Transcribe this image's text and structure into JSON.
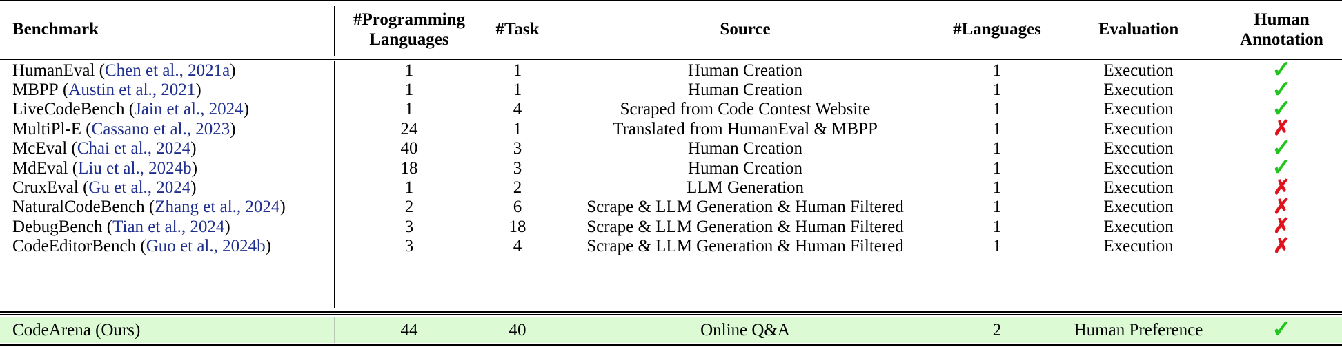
{
  "table": {
    "headers": {
      "benchmark": "Benchmark",
      "programming_languages": [
        "#Programming",
        "Languages"
      ],
      "task": "#Task",
      "source": "Source",
      "languages": "#Languages",
      "evaluation": "Evaluation",
      "human_annotation": [
        "Human",
        "Annotation"
      ]
    },
    "marks": {
      "yes": "✓",
      "no": "✗"
    },
    "rows": [
      {
        "name": "HumanEval",
        "open": " (",
        "cite": "Chen et al., 2021a",
        "close": ")",
        "pl": "1",
        "task": "1",
        "source": "Human Creation",
        "languages": "1",
        "evaluation": "Execution",
        "annotation": "yes"
      },
      {
        "name": "MBPP",
        "open": " (",
        "cite": "Austin et al., 2021",
        "close": ")",
        "pl": "1",
        "task": "1",
        "source": "Human Creation",
        "languages": "1",
        "evaluation": "Execution",
        "annotation": "yes"
      },
      {
        "name": "LiveCodeBench",
        "open": " (",
        "cite": "Jain et al., 2024",
        "close": ")",
        "pl": "1",
        "task": "4",
        "source": "Scraped from Code Contest Website",
        "languages": "1",
        "evaluation": "Execution",
        "annotation": "yes"
      },
      {
        "name": "MultiPl-E",
        "open": " (",
        "cite": "Cassano et al., 2023",
        "close": ")",
        "pl": "24",
        "task": "1",
        "source": "Translated from HumanEval & MBPP",
        "languages": "1",
        "evaluation": "Execution",
        "annotation": "no"
      },
      {
        "name": "McEval",
        "open": " (",
        "cite": "Chai et al., 2024",
        "close": ")",
        "pl": "40",
        "task": "3",
        "source": "Human Creation",
        "languages": "1",
        "evaluation": "Execution",
        "annotation": "yes"
      },
      {
        "name": "MdEval",
        "open": " (",
        "cite": "Liu et al., 2024b",
        "close": ")",
        "pl": "18",
        "task": "3",
        "source": "Human Creation",
        "languages": "1",
        "evaluation": "Execution",
        "annotation": "yes"
      },
      {
        "name": "CruxEval",
        "open": " (",
        "cite": "Gu et al., 2024",
        "close": ")",
        "pl": "1",
        "task": "2",
        "source": "LLM Generation",
        "languages": "1",
        "evaluation": "Execution",
        "annotation": "no"
      },
      {
        "name": "NaturalCodeBench",
        "open": " (",
        "cite": "Zhang et al., 2024",
        "close": ")",
        "pl": "2",
        "task": "6",
        "source": "Scrape & LLM Generation & Human Filtered",
        "languages": "1",
        "evaluation": "Execution",
        "annotation": "no"
      },
      {
        "name": "DebugBench",
        "open": " (",
        "cite": "Tian et al., 2024",
        "close": ")",
        "pl": "3",
        "task": "18",
        "source": "Scrape & LLM Generation & Human Filtered",
        "languages": "1",
        "evaluation": "Execution",
        "annotation": "no"
      },
      {
        "name": "CodeEditorBench",
        "open": " (",
        "cite": "Guo et al., 2024b",
        "close": ")",
        "pl": "3",
        "task": "4",
        "source": "Scrape & LLM Generation & Human Filtered",
        "languages": "1",
        "evaluation": "Execution",
        "annotation": "no"
      }
    ],
    "ours": {
      "name": "CodeArena (Ours)",
      "pl": "44",
      "task": "40",
      "source": "Online Q&A",
      "languages": "2",
      "evaluation": "Human Preference",
      "annotation": "yes"
    },
    "colors": {
      "check": "#22c51e",
      "cross": "#e0121b",
      "cite": "#1f2f8f",
      "ours_bg": "#dcfbd4"
    }
  }
}
